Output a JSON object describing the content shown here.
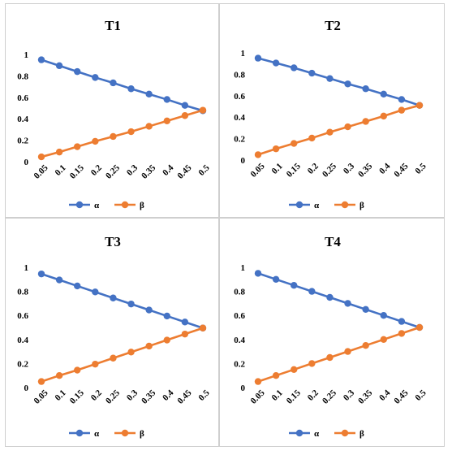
{
  "chart_data": [
    {
      "type": "line",
      "title": "T1",
      "xlabel": "",
      "ylabel": "",
      "x": [
        "0.05",
        "0.1",
        "0.15",
        "0.2",
        "0.25",
        "0.3",
        "0.35",
        "0.4",
        "0.45",
        "0.5"
      ],
      "ylim": [
        0,
        1
      ],
      "yticks": [
        "0",
        "0.2",
        "0.4",
        "0.6",
        "0.8",
        "1"
      ],
      "grid": false,
      "legend_position": "bottom",
      "series": [
        {
          "name": "α",
          "color": "#4472C4",
          "values": [
            0.95,
            0.895,
            0.84,
            0.785,
            0.735,
            0.68,
            0.63,
            0.58,
            0.525,
            0.475
          ]
        },
        {
          "name": "β",
          "color": "#ED7D31",
          "values": [
            0.045,
            0.09,
            0.14,
            0.19,
            0.235,
            0.28,
            0.33,
            0.38,
            0.43,
            0.48
          ]
        }
      ]
    },
    {
      "type": "line",
      "title": "T2",
      "xlabel": "",
      "ylabel": "",
      "x": [
        "0.05",
        "0.1",
        "0.15",
        "0.2",
        "0.25",
        "0.3",
        "0.35",
        "0.4",
        "0.45",
        "0.5"
      ],
      "ylim": [
        0,
        1
      ],
      "yticks": [
        "0",
        "0.2",
        "0.4",
        "0.6",
        "0.8",
        "1"
      ],
      "grid": false,
      "legend_position": "bottom",
      "series": [
        {
          "name": "α",
          "color": "#4472C4",
          "values": [
            0.95,
            0.905,
            0.86,
            0.81,
            0.76,
            0.71,
            0.665,
            0.615,
            0.565,
            0.51
          ]
        },
        {
          "name": "β",
          "color": "#ED7D31",
          "values": [
            0.05,
            0.105,
            0.155,
            0.205,
            0.26,
            0.31,
            0.36,
            0.41,
            0.465,
            0.51
          ]
        }
      ]
    },
    {
      "type": "line",
      "title": "T3",
      "xlabel": "",
      "ylabel": "",
      "x": [
        "0.05",
        "0.1",
        "0.15",
        "0.2",
        "0.25",
        "0.3",
        "0.35",
        "0.4",
        "0.45",
        "0.5"
      ],
      "ylim": [
        0,
        1
      ],
      "yticks": [
        "0",
        "0.2",
        "0.4",
        "0.6",
        "0.8",
        "1"
      ],
      "grid": false,
      "legend_position": "bottom",
      "series": [
        {
          "name": "α",
          "color": "#4472C4",
          "values": [
            0.945,
            0.895,
            0.845,
            0.795,
            0.745,
            0.695,
            0.645,
            0.595,
            0.545,
            0.495
          ]
        },
        {
          "name": "β",
          "color": "#ED7D31",
          "values": [
            0.05,
            0.1,
            0.145,
            0.195,
            0.245,
            0.295,
            0.345,
            0.395,
            0.445,
            0.495
          ]
        }
      ]
    },
    {
      "type": "line",
      "title": "T4",
      "xlabel": "",
      "ylabel": "",
      "x": [
        "0.05",
        "0.1",
        "0.15",
        "0.2",
        "0.25",
        "0.3",
        "0.35",
        "0.4",
        "0.45",
        "0.5"
      ],
      "ylim": [
        0,
        1
      ],
      "yticks": [
        "0",
        "0.2",
        "0.4",
        "0.6",
        "0.8",
        "1"
      ],
      "grid": false,
      "legend_position": "bottom",
      "series": [
        {
          "name": "α",
          "color": "#4472C4",
          "values": [
            0.95,
            0.9,
            0.85,
            0.8,
            0.75,
            0.7,
            0.65,
            0.6,
            0.55,
            0.5
          ]
        },
        {
          "name": "β",
          "color": "#ED7D31",
          "values": [
            0.05,
            0.1,
            0.15,
            0.2,
            0.25,
            0.3,
            0.35,
            0.4,
            0.45,
            0.5
          ]
        }
      ]
    }
  ]
}
